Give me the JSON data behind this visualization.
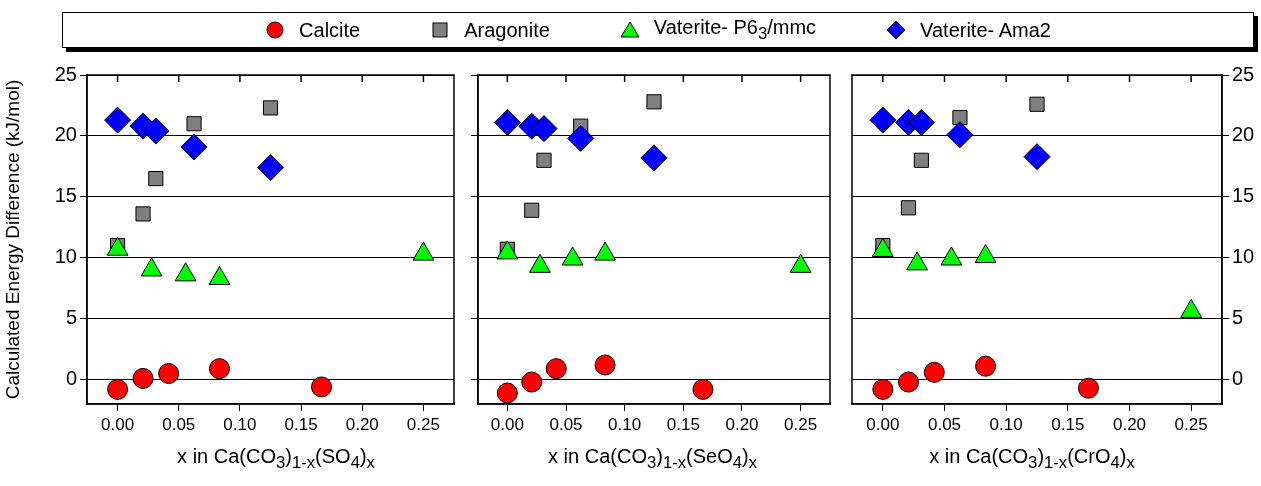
{
  "chart_data": [
    {
      "type": "scatter",
      "xlabel": "x in Ca(CO$_{3}$)$_{1-x}$(SO$_{4}$)$_{x}$",
      "ylabel": "Calculated Energy Difference (kJ/mol)",
      "legend": "top",
      "grid": "y",
      "xlim": [
        -0.025,
        0.275
      ],
      "xticks": [
        {
          "value": 0,
          "label": "0.00"
        },
        {
          "value": 0.05,
          "label": "0.05"
        },
        {
          "value": 0.1,
          "label": "0.10"
        },
        {
          "value": 0.15,
          "label": "0.15"
        },
        {
          "value": 0.2,
          "label": "0.20"
        },
        {
          "value": 0.25,
          "label": "0.25"
        }
      ],
      "ylim": [
        -2,
        25
      ],
      "yticks": [
        0,
        5,
        10,
        15,
        20,
        25
      ],
      "series": [
        {
          "name": "Calcite",
          "color": "#ff0000",
          "marker": "circle",
          "x": [
            0,
            0.0208,
            0.0417,
            0.0833,
            0.1667
          ],
          "values": [
            -0.8,
            0.1,
            0.5,
            0.9,
            -0.6
          ]
        },
        {
          "name": "Aragonite",
          "color": "#808080",
          "marker": "square",
          "x": [
            0,
            0.0208,
            0.03125,
            0.0625,
            0.125
          ],
          "values": [
            11.0,
            13.6,
            16.5,
            21.0,
            22.3
          ]
        },
        {
          "name": "Vaterite- P6$_{3}$/mmc",
          "color": "#00ff00",
          "marker": "triangle",
          "x": [
            0,
            0.0278,
            0.0556,
            0.0833,
            0.25
          ],
          "values": [
            10.7,
            9.0,
            8.6,
            8.3,
            10.3
          ]
        },
        {
          "name": "Vaterite- Ama2",
          "color": "#0000ff",
          "marker": "diamond",
          "x": [
            0,
            0.0208,
            0.03125,
            0.0625,
            0.125
          ],
          "values": [
            21.3,
            20.8,
            20.4,
            19.1,
            17.4
          ]
        }
      ]
    },
    {
      "type": "scatter",
      "xlabel": "x in Ca(CO$_{3}$)$_{1-x}$(SeO$_{4}$)$_{x}$",
      "grid": "y",
      "tick_labels": "x",
      "xlim": [
        -0.025,
        0.275
      ],
      "xticks": [
        {
          "value": 0,
          "label": "0.00"
        },
        {
          "value": 0.05,
          "label": "0.05"
        },
        {
          "value": 0.1,
          "label": "0.10"
        },
        {
          "value": 0.15,
          "label": "0.15"
        },
        {
          "value": 0.2,
          "label": "0.20"
        },
        {
          "value": 0.25,
          "label": "0.25"
        }
      ],
      "ylim": [
        -2,
        25
      ],
      "yticks": [
        0,
        5,
        10,
        15,
        20,
        25
      ],
      "series": [
        {
          "color": "#ff0000",
          "marker": "circle",
          "x": [
            0,
            0.0208,
            0.0417,
            0.0833,
            0.1667
          ],
          "values": [
            -1.1,
            -0.2,
            0.9,
            1.2,
            -0.8
          ]
        },
        {
          "color": "#808080",
          "marker": "square",
          "x": [
            0,
            0.0208,
            0.03125,
            0.0625,
            0.125
          ],
          "values": [
            10.7,
            13.9,
            18.0,
            20.8,
            22.8
          ]
        },
        {
          "color": "#00ff00",
          "marker": "triangle",
          "x": [
            0,
            0.0278,
            0.0556,
            0.0833,
            0.25
          ],
          "values": [
            10.4,
            9.3,
            9.9,
            10.3,
            9.3
          ]
        },
        {
          "color": "#0000ff",
          "marker": "diamond",
          "x": [
            0,
            0.0208,
            0.03125,
            0.0625,
            0.125
          ],
          "values": [
            21.1,
            20.8,
            20.6,
            19.8,
            18.2
          ]
        }
      ]
    },
    {
      "type": "scatter",
      "xlabel": "x in Ca(CO$_{3}$)$_{1-x}$(CrO$_{4}$)$_{x}$",
      "grid": "y",
      "xlim": [
        -0.025,
        0.275
      ],
      "xticks": [
        {
          "value": 0,
          "label": "0.00"
        },
        {
          "value": 0.05,
          "label": "0.05"
        },
        {
          "value": 0.1,
          "label": "0.10"
        },
        {
          "value": 0.15,
          "label": "0.15"
        },
        {
          "value": 0.2,
          "label": "0.20"
        },
        {
          "value": 0.25,
          "label": "0.25"
        }
      ],
      "y2lim": [
        -2,
        25
      ],
      "y2ticks": [
        0,
        5,
        10,
        15,
        20,
        25
      ],
      "series": [
        {
          "color": "#ff0000",
          "marker": "circle",
          "axis": "y2",
          "x": [
            0,
            0.0208,
            0.0417,
            0.0833,
            0.1667
          ],
          "values": [
            -0.8,
            -0.2,
            0.6,
            1.1,
            -0.7
          ]
        },
        {
          "color": "#808080",
          "marker": "square",
          "axis": "y2",
          "x": [
            0,
            0.0208,
            0.03125,
            0.0625,
            0.125
          ],
          "values": [
            11.0,
            14.1,
            18.0,
            21.5,
            22.6
          ]
        },
        {
          "color": "#00ff00",
          "marker": "triangle",
          "axis": "y2",
          "x": [
            0,
            0.0278,
            0.0556,
            0.0833,
            0.25
          ],
          "values": [
            10.6,
            9.5,
            9.9,
            10.1,
            5.6
          ]
        },
        {
          "color": "#0000ff",
          "marker": "diamond",
          "axis": "y2",
          "x": [
            0,
            0.0208,
            0.03125,
            0.0625,
            0.125
          ],
          "values": [
            21.3,
            21.1,
            21.1,
            20.1,
            18.3
          ]
        }
      ]
    }
  ]
}
